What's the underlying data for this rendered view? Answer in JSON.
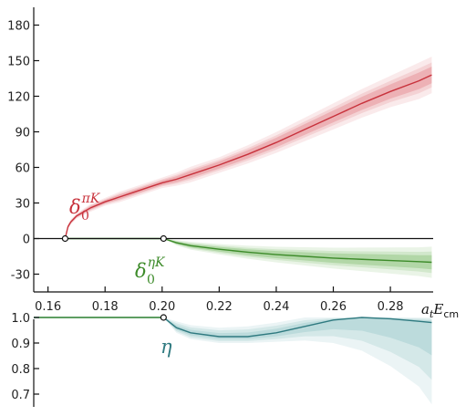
{
  "chart_data": [
    {
      "type": "line",
      "panel": "phase-shift",
      "ylim": [
        -45,
        195
      ],
      "xlim": [
        0.155,
        0.295
      ],
      "yticks": [
        180,
        150,
        120,
        90,
        60,
        30,
        0,
        -30
      ],
      "xticks": [
        0.16,
        0.18,
        0.2,
        0.22,
        0.24,
        0.26,
        0.28
      ],
      "xlabel": "a_t E_cm",
      "xlabel_parts": {
        "a": "a",
        "t": "t",
        "E": "E",
        "cm": "cm"
      },
      "zero_line": true,
      "grid": false,
      "thresholds": [
        {
          "x": 0.166,
          "y": 0
        },
        {
          "x": 0.2005,
          "y": 0
        }
      ],
      "series": [
        {
          "label_parts": {
            "base": "δ",
            "sub": "0",
            "sup": "πK"
          },
          "color": "#c8323c",
          "band_color": "#e58a90",
          "x": [
            0.166,
            0.167,
            0.168,
            0.17,
            0.175,
            0.18,
            0.185,
            0.19,
            0.195,
            0.2,
            0.205,
            0.21,
            0.22,
            0.23,
            0.24,
            0.25,
            0.26,
            0.27,
            0.28,
            0.29,
            0.2945
          ],
          "y": [
            0,
            10,
            14,
            19,
            26,
            31,
            35,
            39,
            43,
            47,
            50,
            54,
            62,
            71,
            81,
            92,
            103,
            114,
            124,
            133,
            138
          ],
          "band_half_width": [
            0,
            1,
            1,
            1,
            1.5,
            1.5,
            2,
            2,
            2,
            2,
            2.5,
            3,
            3,
            3.5,
            4,
            4.5,
            5,
            5.5,
            6,
            7,
            7
          ]
        },
        {
          "label_parts": {
            "base": "δ",
            "sub": "0",
            "sup": "ηK"
          },
          "color": "#3d8b2a",
          "band_color": "#8cc47a",
          "x": [
            0.166,
            0.2005,
            0.205,
            0.21,
            0.22,
            0.23,
            0.24,
            0.25,
            0.26,
            0.27,
            0.28,
            0.29,
            0.2945
          ],
          "y": [
            0,
            0,
            -3.5,
            -6,
            -9,
            -11.5,
            -13.5,
            -15,
            -16.5,
            -17.5,
            -18.5,
            -19.5,
            -20
          ],
          "band_half_width": [
            0,
            0,
            1,
            1.5,
            2,
            2.5,
            3,
            3.5,
            4,
            4.5,
            5,
            5.5,
            6
          ]
        }
      ]
    },
    {
      "type": "line",
      "panel": "inelasticity",
      "ylim": [
        0.65,
        1.0
      ],
      "xlim": [
        0.155,
        0.295
      ],
      "yticks": [
        1.0,
        0.9,
        0.8,
        0.7
      ],
      "ytick_labels": [
        "1.0",
        "0.9",
        "0.8",
        "0.7"
      ],
      "thresholds": [
        {
          "x": 0.2005,
          "y": 1.0
        }
      ],
      "series": [
        {
          "label_parts": {
            "base": "η"
          },
          "color": "#2f7a80",
          "band_color": "#8fc2c5",
          "x": [
            0.155,
            0.2005,
            0.205,
            0.21,
            0.22,
            0.23,
            0.24,
            0.25,
            0.26,
            0.27,
            0.28,
            0.29,
            0.2945
          ],
          "y": [
            1.0,
            1.0,
            0.96,
            0.94,
            0.925,
            0.925,
            0.94,
            0.965,
            0.99,
            1.0,
            0.995,
            0.985,
            0.98
          ],
          "band_upper": [
            1.0,
            1.0,
            0.985,
            0.97,
            0.96,
            0.965,
            0.98,
            1.0,
            1.0,
            1.0,
            1.0,
            1.0,
            1.0
          ],
          "band_lower": [
            1.0,
            1.0,
            0.94,
            0.915,
            0.9,
            0.9,
            0.905,
            0.91,
            0.9,
            0.87,
            0.81,
            0.73,
            0.66
          ]
        }
      ]
    }
  ]
}
